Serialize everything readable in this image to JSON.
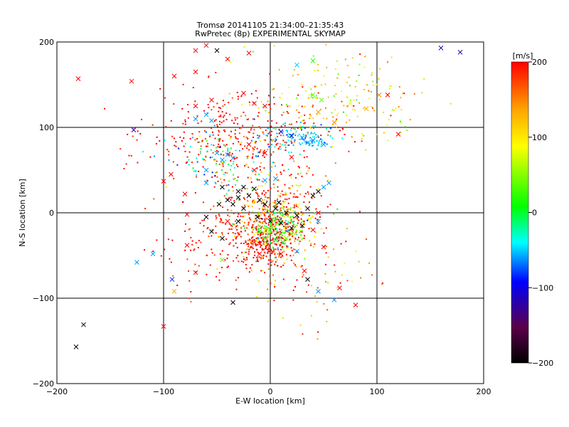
{
  "chart_data": {
    "type": "scatter",
    "title_line1": "Tromsø 20141105 21:34:00–21:35:43",
    "title_line2": "RwPretec (8p) EXPERIMENTAL SKYMAP",
    "xlabel": "E-W location [km]",
    "ylabel": "N-S location [km]",
    "xlim": [
      -200,
      200
    ],
    "ylim": [
      -200,
      200
    ],
    "xticks": [
      -200,
      -100,
      0,
      100,
      200
    ],
    "yticks": [
      -200,
      -100,
      0,
      100,
      200
    ],
    "grid_lines": [
      -100,
      0,
      100
    ],
    "colorbar": {
      "label": "[m/s]",
      "range": [
        -200,
        200
      ],
      "ticks": [
        200,
        100,
        0,
        -100,
        -200
      ],
      "colors": [
        "#000000",
        "#5a004a",
        "#0000ff",
        "#00ffff",
        "#00ff00",
        "#ffff00",
        "#ffa500",
        "#ff0000"
      ]
    },
    "crosses": [
      {
        "x": -180,
        "y": 157,
        "v": 200
      },
      {
        "x": -130,
        "y": 154,
        "v": 200
      },
      {
        "x": -70,
        "y": 190,
        "v": 200
      },
      {
        "x": -50,
        "y": 190,
        "v": -200
      },
      {
        "x": -20,
        "y": 187,
        "v": 200
      },
      {
        "x": -70,
        "y": 165,
        "v": 200
      },
      {
        "x": 160,
        "y": 193,
        "v": -120
      },
      {
        "x": 178,
        "y": 188,
        "v": -120
      },
      {
        "x": -128,
        "y": 97,
        "v": -120
      },
      {
        "x": 120,
        "y": 92,
        "v": 200
      },
      {
        "x": 40,
        "y": 178,
        "v": 20
      },
      {
        "x": 25,
        "y": 173,
        "v": -50
      },
      {
        "x": 40,
        "y": 138,
        "v": 40
      },
      {
        "x": 48,
        "y": 132,
        "v": 40
      },
      {
        "x": 75,
        "y": 128,
        "v": 90
      },
      {
        "x": 90,
        "y": 122,
        "v": 130
      },
      {
        "x": 102,
        "y": 138,
        "v": 150
      },
      {
        "x": 110,
        "y": 138,
        "v": 200
      },
      {
        "x": 45,
        "y": 118,
        "v": 140
      },
      {
        "x": 60,
        "y": 106,
        "v": 150
      },
      {
        "x": -90,
        "y": 160,
        "v": 200
      },
      {
        "x": -60,
        "y": 196,
        "v": 200
      },
      {
        "x": -40,
        "y": 180,
        "v": 200
      },
      {
        "x": -93,
        "y": 45,
        "v": 200
      },
      {
        "x": -60,
        "y": 35,
        "v": -60
      },
      {
        "x": -45,
        "y": 30,
        "v": -200
      },
      {
        "x": -30,
        "y": 25,
        "v": -200
      },
      {
        "x": -25,
        "y": 30,
        "v": -200
      },
      {
        "x": -15,
        "y": 28,
        "v": -200
      },
      {
        "x": -10,
        "y": 15,
        "v": -200
      },
      {
        "x": -5,
        "y": 10,
        "v": -200
      },
      {
        "x": 5,
        "y": 5,
        "v": -200
      },
      {
        "x": 15,
        "y": 0,
        "v": -200
      },
      {
        "x": 25,
        "y": -3,
        "v": -200
      },
      {
        "x": 35,
        "y": 5,
        "v": -200
      },
      {
        "x": 30,
        "y": -15,
        "v": -200
      },
      {
        "x": 20,
        "y": -18,
        "v": -200
      },
      {
        "x": 40,
        "y": 20,
        "v": -200
      },
      {
        "x": 45,
        "y": 25,
        "v": -200
      },
      {
        "x": -55,
        "y": -22,
        "v": -200
      },
      {
        "x": -45,
        "y": -30,
        "v": -200
      },
      {
        "x": -30,
        "y": -10,
        "v": -200
      },
      {
        "x": -25,
        "y": 5,
        "v": -200
      },
      {
        "x": -35,
        "y": 10,
        "v": -200
      },
      {
        "x": -40,
        "y": 15,
        "v": -200
      },
      {
        "x": -48,
        "y": 10,
        "v": -200
      },
      {
        "x": -12,
        "y": -5,
        "v": -200
      },
      {
        "x": 0,
        "y": -10,
        "v": -200
      },
      {
        "x": 10,
        "y": -12,
        "v": -200
      },
      {
        "x": 8,
        "y": 12,
        "v": -200
      },
      {
        "x": -20,
        "y": 20,
        "v": -200
      },
      {
        "x": -30,
        "y": 18,
        "v": -200
      },
      {
        "x": -78,
        "y": -2,
        "v": 200
      },
      {
        "x": -60,
        "y": -5,
        "v": -200
      },
      {
        "x": -40,
        "y": -10,
        "v": 200
      },
      {
        "x": -100,
        "y": 37,
        "v": 200
      },
      {
        "x": -80,
        "y": 22,
        "v": 200
      },
      {
        "x": -78,
        "y": -38,
        "v": 200
      },
      {
        "x": -90,
        "y": -92,
        "v": 130
      },
      {
        "x": -92,
        "y": -78,
        "v": -80
      },
      {
        "x": -70,
        "y": -70,
        "v": 200
      },
      {
        "x": -45,
        "y": -55,
        "v": 40
      },
      {
        "x": -10,
        "y": -48,
        "v": 200
      },
      {
        "x": 10,
        "y": -48,
        "v": 200
      },
      {
        "x": 25,
        "y": -45,
        "v": -60
      },
      {
        "x": 35,
        "y": -78,
        "v": -200
      },
      {
        "x": 65,
        "y": -88,
        "v": 200
      },
      {
        "x": 45,
        "y": -92,
        "v": -60
      },
      {
        "x": 60,
        "y": -102,
        "v": -60
      },
      {
        "x": 80,
        "y": -108,
        "v": 200
      },
      {
        "x": 32,
        "y": -68,
        "v": 200
      },
      {
        "x": 50,
        "y": -40,
        "v": 200
      },
      {
        "x": 45,
        "y": -10,
        "v": -60
      },
      {
        "x": 45,
        "y": 0,
        "v": 200
      },
      {
        "x": 40,
        "y": -20,
        "v": 200
      },
      {
        "x": -35,
        "y": -105,
        "v": -200
      },
      {
        "x": -100,
        "y": -133,
        "v": 200
      },
      {
        "x": -175,
        "y": -131,
        "v": -200
      },
      {
        "x": -182,
        "y": -157,
        "v": -200
      },
      {
        "x": -125,
        "y": -58,
        "v": -60
      },
      {
        "x": -110,
        "y": -48,
        "v": -60
      },
      {
        "x": -20,
        "y": 80,
        "v": 200
      },
      {
        "x": -5,
        "y": 70,
        "v": 200
      },
      {
        "x": -15,
        "y": 50,
        "v": 200
      },
      {
        "x": 20,
        "y": 65,
        "v": 200
      },
      {
        "x": 10,
        "y": 95,
        "v": -100
      },
      {
        "x": 20,
        "y": 90,
        "v": -100
      },
      {
        "x": 30,
        "y": 88,
        "v": -60
      },
      {
        "x": 40,
        "y": 85,
        "v": -60
      },
      {
        "x": 35,
        "y": 82,
        "v": -60
      },
      {
        "x": 50,
        "y": 80,
        "v": -60
      },
      {
        "x": -60,
        "y": 115,
        "v": -60
      },
      {
        "x": -55,
        "y": 108,
        "v": -60
      },
      {
        "x": -70,
        "y": 110,
        "v": -60
      },
      {
        "x": -50,
        "y": 70,
        "v": -60
      },
      {
        "x": -45,
        "y": 62,
        "v": -60
      },
      {
        "x": -35,
        "y": 64,
        "v": -60
      },
      {
        "x": -40,
        "y": 68,
        "v": -60
      },
      {
        "x": -60,
        "y": 50,
        "v": -60
      },
      {
        "x": -5,
        "y": 38,
        "v": -60
      },
      {
        "x": 5,
        "y": 40,
        "v": -60
      },
      {
        "x": 55,
        "y": 35,
        "v": -60
      },
      {
        "x": 50,
        "y": 30,
        "v": -60
      },
      {
        "x": -15,
        "y": 128,
        "v": 200
      },
      {
        "x": -5,
        "y": 125,
        "v": 200
      },
      {
        "x": -25,
        "y": 140,
        "v": 200
      },
      {
        "x": -70,
        "y": 125,
        "v": 200
      },
      {
        "x": -55,
        "y": 132,
        "v": 200
      },
      {
        "x": 0,
        "y": -20,
        "v": 20
      },
      {
        "x": 10,
        "y": -25,
        "v": 20
      },
      {
        "x": -5,
        "y": -30,
        "v": 20
      },
      {
        "x": 15,
        "y": -30,
        "v": 40
      },
      {
        "x": 20,
        "y": -25,
        "v": 40
      },
      {
        "x": -10,
        "y": -22,
        "v": 0
      },
      {
        "x": 5,
        "y": -32,
        "v": 0
      },
      {
        "x": 12,
        "y": -35,
        "v": 0
      }
    ]
  }
}
